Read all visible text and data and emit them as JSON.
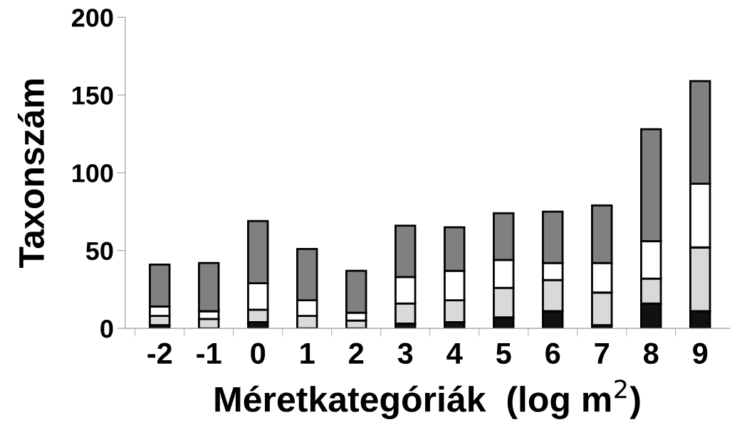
{
  "chart_data": {
    "type": "bar",
    "stacked": true,
    "xlabel": "Méretkategóriák  (log m$^{2}$)",
    "ylabel": "Taxonszám",
    "categories": [
      "-2",
      "-1",
      "0",
      "1",
      "2",
      "3",
      "4",
      "5",
      "6",
      "7",
      "8",
      "9"
    ],
    "series": [
      {
        "color": "#111111",
        "values": [
          2,
          0,
          4,
          0,
          0,
          3,
          4,
          7,
          11,
          2,
          16,
          11
        ]
      },
      {
        "color": "#d9d9d9",
        "values": [
          6,
          6,
          8,
          8,
          5,
          13,
          14,
          19,
          20,
          21,
          16,
          41
        ]
      },
      {
        "color": "#ffffff",
        "values": [
          6,
          5,
          17,
          10,
          5,
          17,
          19,
          18,
          11,
          19,
          24,
          41
        ]
      },
      {
        "color": "#808080",
        "values": [
          27,
          31,
          40,
          33,
          27,
          33,
          28,
          30,
          33,
          37,
          72,
          66
        ]
      }
    ],
    "ylim": [
      0,
      200
    ],
    "yticks": [
      0,
      50,
      100,
      150,
      200
    ],
    "grid": false
  }
}
